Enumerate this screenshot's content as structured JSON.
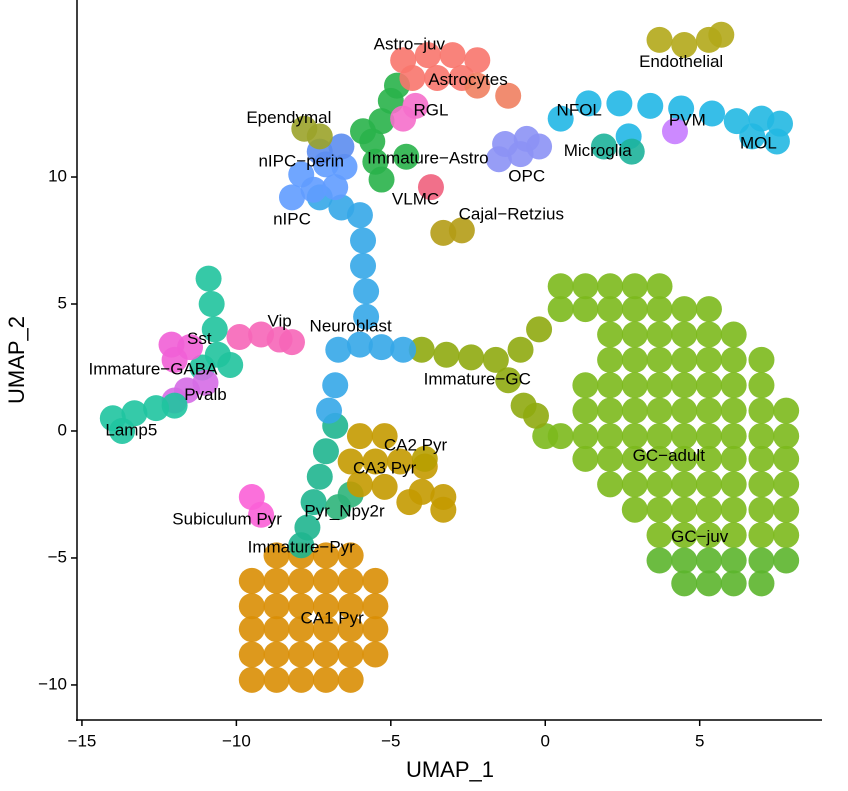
{
  "chart_data": {
    "type": "scatter",
    "x_label": "UMAP_1",
    "y_label": "UMAP_2",
    "xlim": [
      -15.16,
      8.96
    ],
    "ylim": [
      -11.38,
      16.97
    ],
    "xticks": [
      {
        "value": -15,
        "label": "−15"
      },
      {
        "value": -10,
        "label": "−10"
      },
      {
        "value": -5,
        "label": "−5"
      },
      0,
      5
    ],
    "yticks": [
      {
        "value": -10,
        "label": "−10"
      },
      {
        "value": -5,
        "label": "−5"
      },
      0,
      5,
      10
    ],
    "grid": false,
    "series": [
      {
        "name": "GC−adult",
        "color": "#7cb91c",
        "label_x": 4.0,
        "label_y": -1.0,
        "x": [
          0.5,
          1.3,
          2.1,
          2.9,
          3.7,
          0.5,
          1.3,
          2.1,
          2.9,
          3.7,
          4.5,
          5.3,
          2.1,
          2.9,
          3.7,
          4.5,
          5.3,
          6.1,
          2.1,
          2.9,
          3.7,
          4.5,
          5.3,
          6.1,
          7.0,
          1.3,
          2.1,
          2.9,
          3.7,
          4.5,
          5.3,
          6.1,
          7.0,
          1.3,
          2.1,
          2.9,
          3.7,
          4.5,
          5.3,
          6.1,
          7.0,
          7.8,
          0.0,
          0.5,
          1.3,
          2.1,
          2.9,
          3.7,
          4.5,
          5.3,
          6.1,
          7.0,
          7.8,
          1.3,
          2.1,
          2.9,
          3.7,
          4.5,
          5.3,
          6.1,
          7.0,
          7.8,
          2.1,
          2.9,
          3.7,
          4.5,
          5.3,
          6.1,
          7.0,
          7.8,
          2.9,
          3.7,
          4.5,
          5.3,
          6.1,
          7.0,
          7.8,
          3.7,
          4.5,
          5.3,
          6.1,
          7.0,
          7.8
        ],
        "y": [
          5.7,
          5.7,
          5.7,
          5.7,
          5.7,
          4.8,
          4.8,
          4.8,
          4.8,
          4.8,
          4.8,
          4.8,
          3.8,
          3.8,
          3.8,
          3.8,
          3.8,
          3.8,
          2.8,
          2.8,
          2.8,
          2.8,
          2.8,
          2.8,
          2.8,
          1.8,
          1.8,
          1.8,
          1.8,
          1.8,
          1.8,
          1.8,
          1.8,
          0.8,
          0.8,
          0.8,
          0.8,
          0.8,
          0.8,
          0.8,
          0.8,
          0.8,
          -0.2,
          -0.2,
          -0.2,
          -0.2,
          -0.2,
          -0.2,
          -0.2,
          -0.2,
          -0.2,
          -0.2,
          -0.2,
          -1.1,
          -1.1,
          -1.1,
          -1.1,
          -1.1,
          -1.1,
          -1.1,
          -1.1,
          -1.1,
          -2.1,
          -2.1,
          -2.1,
          -2.1,
          -2.1,
          -2.1,
          -2.1,
          -2.1,
          -3.1,
          -3.1,
          -3.1,
          -3.1,
          -3.1,
          -3.1,
          -3.1,
          -4.1,
          -4.1,
          -4.1,
          -4.1,
          -4.1,
          -4.1
        ]
      },
      {
        "name": "GC−juv",
        "color": "#5cb52c",
        "label_x": 5.0,
        "label_y": -4.2,
        "x": [
          3.7,
          4.5,
          5.3,
          6.1,
          7.0,
          7.8,
          4.5,
          5.3,
          6.1,
          7.0
        ],
        "y": [
          -5.1,
          -5.1,
          -5.1,
          -5.1,
          -5.1,
          -5.1,
          -6.0,
          -6.0,
          -6.0,
          -6.0
        ]
      },
      {
        "name": "CA1 Pyr",
        "color": "#d98e04",
        "label_x": -6.9,
        "label_y": -7.4,
        "x": [
          -8.7,
          -7.9,
          -7.1,
          -6.3,
          -9.5,
          -8.7,
          -7.9,
          -7.1,
          -6.3,
          -5.5,
          -9.5,
          -8.7,
          -7.9,
          -7.1,
          -6.3,
          -5.5,
          -9.5,
          -8.7,
          -7.9,
          -7.1,
          -6.3,
          -5.5,
          -9.5,
          -8.7,
          -7.9,
          -7.1,
          -6.3,
          -5.5,
          -9.5,
          -8.7,
          -7.9,
          -7.1,
          -6.3
        ],
        "y": [
          -4.9,
          -4.9,
          -4.9,
          -4.9,
          -5.9,
          -5.9,
          -5.9,
          -5.9,
          -5.9,
          -5.9,
          -6.9,
          -6.9,
          -6.9,
          -6.9,
          -6.9,
          -6.9,
          -7.8,
          -7.8,
          -7.8,
          -7.8,
          -7.8,
          -7.8,
          -8.8,
          -8.8,
          -8.8,
          -8.8,
          -8.8,
          -8.8,
          -9.8,
          -9.8,
          -9.8,
          -9.8,
          -9.8
        ]
      },
      {
        "name": "Immature−Pyr",
        "color": "#1fb58f",
        "label_x": -7.9,
        "label_y": -4.6,
        "x": [
          -6.8,
          -7.1,
          -7.3,
          -7.5,
          -7.7,
          -7.9
        ],
        "y": [
          0.2,
          -0.8,
          -1.8,
          -2.8,
          -3.8,
          -4.5
        ]
      },
      {
        "name": "Pyr_Npy2r",
        "color": "#2db47a",
        "label_x": -6.5,
        "label_y": -3.2,
        "x": [
          -6.7,
          -6.3
        ],
        "y": [
          -3.0,
          -2.5
        ]
      },
      {
        "name": "CA3 Pyr",
        "color": "#c49a00",
        "label_x": -5.2,
        "label_y": -1.5,
        "x": [
          -6.0,
          -5.2,
          -6.3,
          -5.5,
          -4.7,
          -3.9,
          -6.0,
          -5.2,
          -4.0,
          -3.3,
          -3.3,
          -4.4
        ],
        "y": [
          -0.2,
          -0.2,
          -1.2,
          -1.2,
          -1.2,
          -1.4,
          -2.1,
          -2.2,
          -2.4,
          -2.6,
          -3.1,
          -2.8
        ]
      },
      {
        "name": "CA2 Pyr",
        "color": "#b79f00",
        "label_x": -4.2,
        "label_y": -0.6,
        "x": [
          -3.9
        ],
        "y": [
          -1.1
        ]
      },
      {
        "name": "Subiculum Pyr",
        "color": "#fb61d7",
        "label_x": -10.3,
        "label_y": -3.5,
        "x": [
          -9.5,
          -9.2
        ],
        "y": [
          -2.6,
          -3.3
        ]
      },
      {
        "name": "Immature−GC",
        "color": "#8faa10",
        "label_x": -2.2,
        "label_y": 2.0,
        "x": [
          -4.0,
          -3.2,
          -2.4,
          -1.6,
          -1.2,
          -0.7,
          -0.3,
          -0.8,
          -0.2
        ],
        "y": [
          3.2,
          3.0,
          2.9,
          2.8,
          2.0,
          1.0,
          0.6,
          3.2,
          4.0
        ]
      },
      {
        "name": "Neuroblast",
        "color": "#35a7e8",
        "label_x": -6.3,
        "label_y": 4.1,
        "x": [
          -6.0,
          -5.9,
          -5.9,
          -5.8,
          -5.8,
          -6.0,
          -5.3,
          -4.6,
          -6.7,
          -6.8,
          -7.0,
          -7.3,
          -6.6
        ],
        "y": [
          8.5,
          7.5,
          6.5,
          5.5,
          4.5,
          3.4,
          3.3,
          3.2,
          3.2,
          1.8,
          0.8,
          9.2,
          8.8
        ]
      },
      {
        "name": "nIPC",
        "color": "#619cff",
        "label_x": -8.2,
        "label_y": 8.3,
        "x": [
          -8.2,
          -7.5,
          -6.8,
          -7.9,
          -7.1,
          -6.5
        ],
        "y": [
          9.2,
          9.5,
          9.6,
          10.1,
          10.5,
          10.4
        ]
      },
      {
        "name": "nIPC−perin",
        "color": "#5c8df0",
        "label_x": -7.9,
        "label_y": 10.6,
        "x": [
          -7.3,
          -6.6
        ],
        "y": [
          11.0,
          11.2
        ]
      },
      {
        "name": "Immature−Astro",
        "color": "#29b24a",
        "label_x": -3.8,
        "label_y": 10.7,
        "x": [
          -5.0,
          -5.3,
          -5.6,
          -5.5,
          -5.3,
          -4.8,
          -4.5,
          -5.9
        ],
        "y": [
          13.0,
          12.2,
          11.4,
          10.6,
          9.9,
          13.6,
          10.8,
          11.8
        ]
      },
      {
        "name": "Astro−juv",
        "color": "#f8766d",
        "label_x": -4.4,
        "label_y": 15.2,
        "x": [
          -4.6,
          -3.8,
          -3.0,
          -2.2,
          -4.3,
          -3.5,
          -2.7
        ],
        "y": [
          14.6,
          14.8,
          14.8,
          14.6,
          13.9,
          13.9,
          13.9
        ]
      },
      {
        "name": "Astrocytes",
        "color": "#f08060",
        "label_x": -2.5,
        "label_y": 13.8,
        "x": [
          -2.2,
          -1.2
        ],
        "y": [
          13.6,
          13.2
        ]
      },
      {
        "name": "RGL",
        "color": "#f56fcb",
        "label_x": -3.7,
        "label_y": 12.6,
        "x": [
          -4.6,
          -4.2
        ],
        "y": [
          12.3,
          12.8
        ]
      },
      {
        "name": "Ependymal",
        "color": "#9ba32a",
        "label_x": -8.3,
        "label_y": 12.3,
        "x": [
          -7.8,
          -7.3
        ],
        "y": [
          11.9,
          11.6
        ]
      },
      {
        "name": "VLMC",
        "color": "#f0607d",
        "label_x": -4.2,
        "label_y": 9.1,
        "x": [
          -3.7
        ],
        "y": [
          9.6
        ]
      },
      {
        "name": "Cajal−Retzius",
        "color": "#b49c16",
        "label_x": -1.1,
        "label_y": 8.5,
        "x": [
          -3.3,
          -2.7
        ],
        "y": [
          7.8,
          7.9
        ]
      },
      {
        "name": "OPC",
        "color": "#8c92f5",
        "label_x": -0.6,
        "label_y": 10.0,
        "x": [
          -1.3,
          -0.6,
          -0.2,
          -1.5,
          -0.8
        ],
        "y": [
          11.3,
          11.5,
          11.2,
          10.7,
          10.9
        ]
      },
      {
        "name": "NFOL",
        "color": "#21b7e6",
        "label_x": 1.1,
        "label_y": 12.6,
        "x": [
          0.5,
          1.4,
          2.4,
          3.4,
          4.4,
          5.4,
          2.7
        ],
        "y": [
          12.3,
          12.9,
          12.9,
          12.8,
          12.7,
          12.5,
          11.6
        ]
      },
      {
        "name": "MOL",
        "color": "#22b8e2",
        "label_x": 6.9,
        "label_y": 11.3,
        "x": [
          6.2,
          7.0,
          7.6,
          6.7,
          7.5
        ],
        "y": [
          12.2,
          12.3,
          12.1,
          11.6,
          11.4
        ]
      },
      {
        "name": "Microglia",
        "color": "#1db39a",
        "label_x": 1.7,
        "label_y": 11.0,
        "x": [
          1.9,
          2.8
        ],
        "y": [
          11.2,
          11.0
        ]
      },
      {
        "name": "PVM",
        "color": "#c77cff",
        "label_x": 4.6,
        "label_y": 12.2,
        "x": [
          4.2
        ],
        "y": [
          11.8
        ]
      },
      {
        "name": "Endothelial",
        "color": "#b3a81a",
        "label_x": 4.4,
        "label_y": 14.5,
        "x": [
          3.7,
          4.5,
          5.3,
          5.7
        ],
        "y": [
          15.4,
          15.2,
          15.4,
          15.6
        ]
      },
      {
        "name": "Immature−GABA",
        "color": "#20c39d",
        "label_x": -12.7,
        "label_y": 2.4,
        "x": [
          -10.9,
          -10.8,
          -10.7,
          -11.1,
          -10.2,
          -10.6
        ],
        "y": [
          6.0,
          5.0,
          4.0,
          2.5,
          2.6,
          3.0
        ]
      },
      {
        "name": "Vip",
        "color": "#f666b8",
        "label_x": -8.6,
        "label_y": 4.3,
        "x": [
          -9.9,
          -9.2,
          -8.6,
          -8.2
        ],
        "y": [
          3.7,
          3.8,
          3.6,
          3.5
        ]
      },
      {
        "name": "Sst",
        "color": "#f15fd6",
        "label_x": -11.2,
        "label_y": 3.6,
        "x": [
          -12.1,
          -11.5,
          -12.0
        ],
        "y": [
          3.4,
          3.3,
          2.8
        ]
      },
      {
        "name": "Pvalb",
        "color": "#d56ce6",
        "label_x": -11.0,
        "label_y": 1.4,
        "x": [
          -11.6,
          -11.0,
          -12.0
        ],
        "y": [
          1.6,
          1.9,
          1.2
        ]
      },
      {
        "name": "Lamp5",
        "color": "#1fc4a0",
        "label_x": -13.4,
        "label_y": 0.0,
        "x": [
          -14.0,
          -13.3,
          -12.6,
          -12.0,
          -13.7
        ],
        "y": [
          0.5,
          0.7,
          0.9,
          1.0,
          0.0
        ]
      }
    ]
  }
}
